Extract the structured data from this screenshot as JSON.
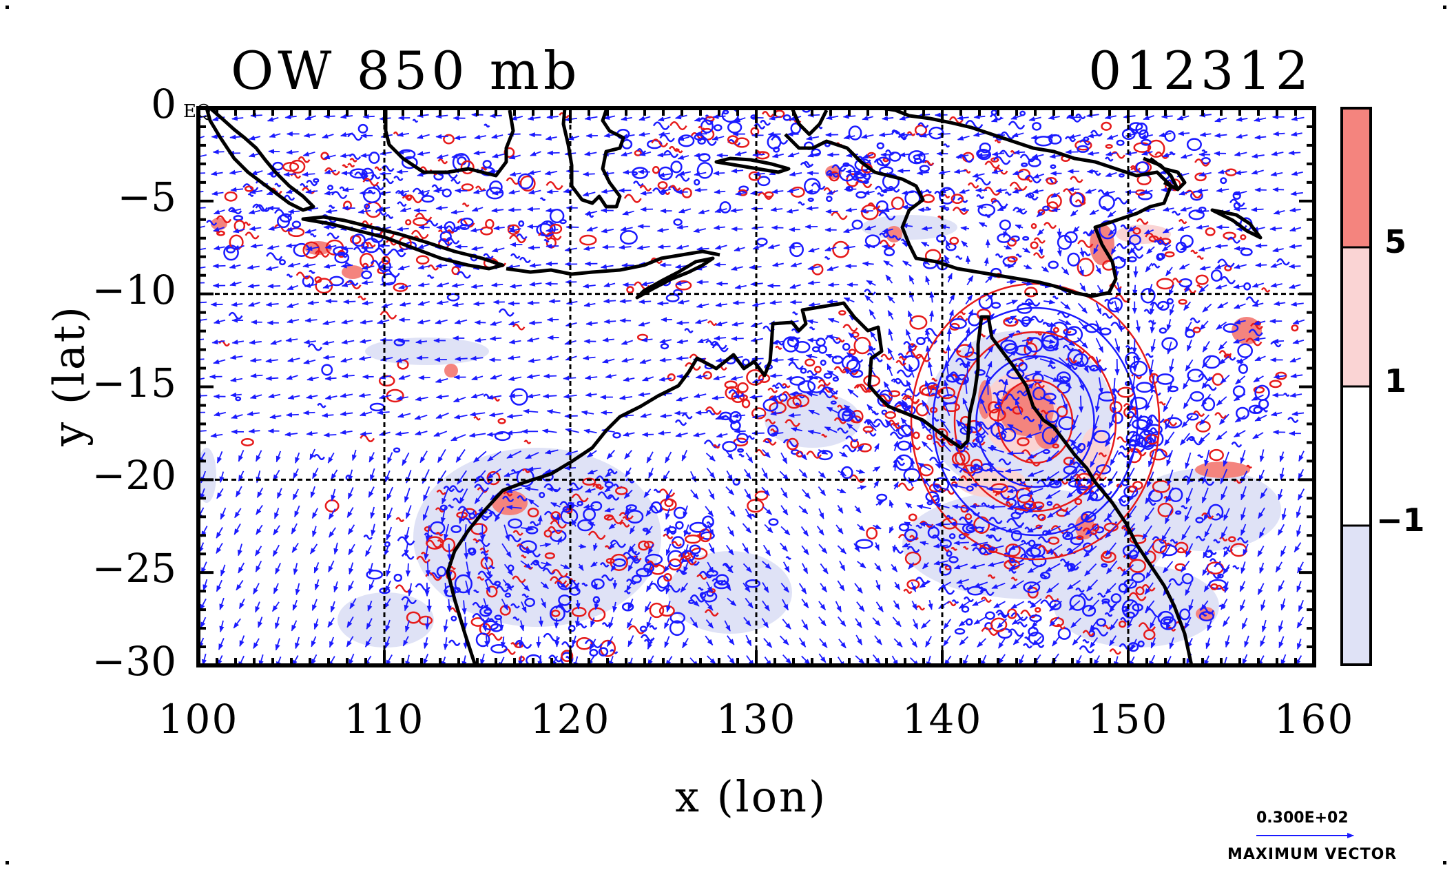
{
  "header": {
    "title_left": "OW 850 mb",
    "title_right": "012312"
  },
  "map": {
    "type": "contour_map_with_vectors",
    "extent": {
      "lon": [
        100,
        160
      ],
      "lat": [
        -30,
        0
      ]
    },
    "x_ticks": [
      "100",
      "110",
      "120",
      "130",
      "140",
      "150",
      "160"
    ],
    "y_ticks": [
      "0",
      "−5",
      "−10",
      "−15",
      "−20",
      "−25",
      "−30"
    ],
    "x_label": "x (lon)",
    "y_label": "y (lat)",
    "equator_label": "EQ",
    "grid_dashed": true,
    "colors": {
      "vector": "#1a1aff",
      "positive_contour": "#e61a1a",
      "negative_contour": "#1a1aff",
      "positive_fill_strong": "#f4847e",
      "positive_fill_weak": "#fad4d4",
      "negative_fill": "#dfe2f6",
      "coastline": "#000000"
    },
    "features": [
      {
        "name": "cyclone-circulation",
        "lon": 145,
        "lat": -16.5
      },
      {
        "name": "anticyclone-circulation",
        "lon": 117,
        "lat": -22
      }
    ]
  },
  "colorbar": {
    "levels": [
      "5",
      "1",
      "−1"
    ],
    "bands": [
      {
        "range": "> 5",
        "color": "#f4847e"
      },
      {
        "range": "1 to 5",
        "color": "#fad4d4"
      },
      {
        "range": "−1 to 1",
        "color": "#ffffff"
      },
      {
        "range": "< −1",
        "color": "#dfe2f6"
      }
    ]
  },
  "vector_legend": {
    "magnitude": "0.300E+02",
    "label": "MAXIMUM VECTOR"
  }
}
